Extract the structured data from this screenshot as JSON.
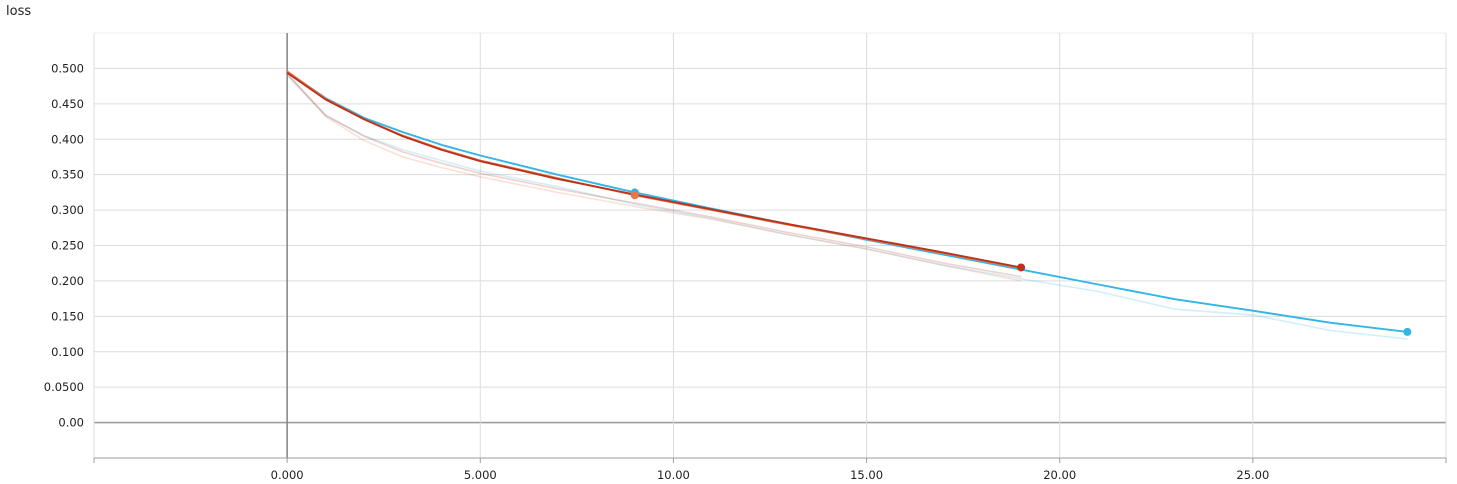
{
  "chart_data": {
    "type": "line",
    "title": "loss",
    "xlabel": "",
    "ylabel": "",
    "xlim": [
      -5,
      30
    ],
    "ylim": [
      -0.05,
      0.55
    ],
    "x_ticks": [
      0,
      5,
      10,
      15,
      20,
      25
    ],
    "x_tick_labels": [
      "0.000",
      "5.000",
      "10.00",
      "15.00",
      "20.00",
      "25.00"
    ],
    "y_ticks": [
      0,
      0.05,
      0.1,
      0.15,
      0.2,
      0.25,
      0.3,
      0.35,
      0.4,
      0.45,
      0.5
    ],
    "y_tick_labels": [
      "0.00",
      "0.0500",
      "0.100",
      "0.150",
      "0.200",
      "0.250",
      "0.300",
      "0.350",
      "0.400",
      "0.450",
      "0.500"
    ],
    "grid": true,
    "series": [
      {
        "color": "#33b5e5",
        "x": [
          0,
          1,
          2,
          3,
          4,
          5,
          7,
          9,
          11,
          13,
          15,
          17,
          19,
          21,
          23,
          25,
          27,
          29
        ],
        "values": [
          0.495,
          0.458,
          0.43,
          0.41,
          0.392,
          0.377,
          0.35,
          0.325,
          0.302,
          0.28,
          0.258,
          0.237,
          0.216,
          0.195,
          0.174,
          0.158,
          0.141,
          0.128
        ],
        "raw_values": [
          0.49,
          0.433,
          0.405,
          0.385,
          0.37,
          0.355,
          0.333,
          0.308,
          0.288,
          0.265,
          0.245,
          0.222,
          0.203,
          0.185,
          0.16,
          0.152,
          0.13,
          0.118
        ],
        "marker_x": [
          9,
          29
        ]
      },
      {
        "color": "#e8784a",
        "x": [
          0,
          1,
          2,
          3,
          4,
          5,
          7,
          9,
          11,
          13,
          15,
          17,
          19
        ],
        "values": [
          0.496,
          0.457,
          0.428,
          0.405,
          0.386,
          0.37,
          0.345,
          0.321,
          0.3,
          0.279,
          0.259,
          0.239,
          0.218
        ],
        "raw_values": [
          0.493,
          0.432,
          0.398,
          0.375,
          0.36,
          0.347,
          0.325,
          0.305,
          0.287,
          0.265,
          0.245,
          0.222,
          0.2
        ],
        "marker_x": [
          9
        ]
      },
      {
        "color": "#b8341c",
        "x": [
          0,
          1,
          2,
          3,
          4,
          5,
          7,
          9,
          11,
          13,
          15,
          17,
          19
        ],
        "values": [
          0.494,
          0.456,
          0.428,
          0.404,
          0.385,
          0.369,
          0.344,
          0.322,
          0.301,
          0.28,
          0.26,
          0.24,
          0.219
        ],
        "raw_values": [
          0.492,
          0.434,
          0.404,
          0.382,
          0.366,
          0.352,
          0.33,
          0.31,
          0.29,
          0.268,
          0.248,
          0.225,
          0.206
        ],
        "marker_x": [
          19
        ]
      }
    ]
  }
}
